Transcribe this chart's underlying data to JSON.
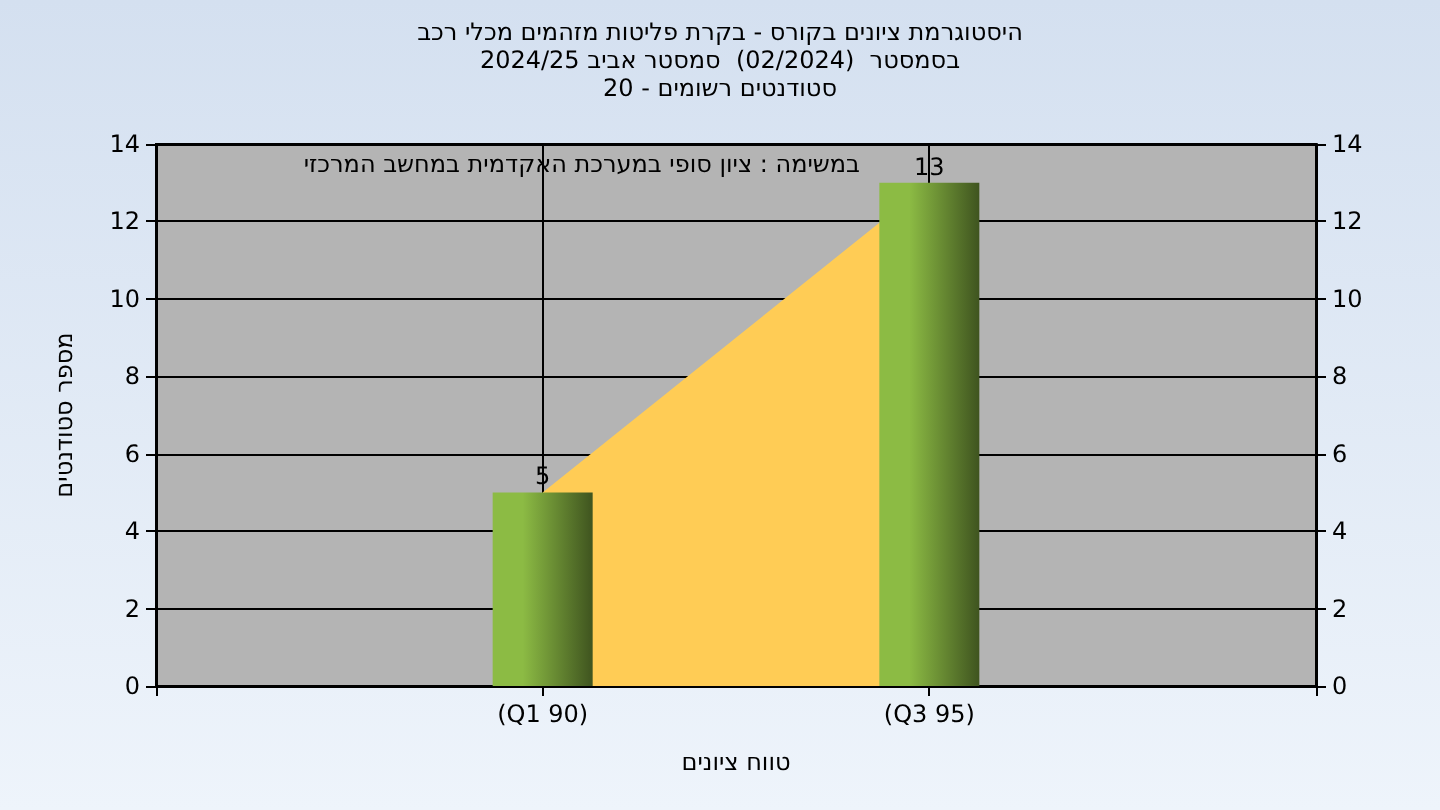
{
  "chart_data": {
    "type": "bar",
    "title": "היסטוגרמת ציונים בקורס - בקרת פליטות מזהמים מכלי רכב\nבסמסטר  (02/2024)  סמסטר אביב 2024/25\nסטודנטים רשומים - 20",
    "xlabel": "טווח ציונים",
    "ylabel": "מספר סטודנטים",
    "annotations": [
      "במשימה : ציון סופי במערכת האקדמית במחשב המרכזי"
    ],
    "categories": [
      null,
      "(Q1 90)",
      "(Q3 95)",
      null
    ],
    "series": [
      {
        "type": "area",
        "color": "#ffcc55",
        "values": [
          null,
          5,
          13,
          null
        ]
      },
      {
        "color": "#8cbb44",
        "values": [
          null,
          5,
          13,
          null
        ],
        "value_labels": [
          null,
          "5",
          "13",
          null
        ]
      }
    ],
    "ylim": [
      0,
      14
    ],
    "yticks": [
      0,
      2,
      4,
      6,
      8,
      10,
      12,
      14
    ],
    "y2lim": [
      0,
      14
    ],
    "y2ticks": [
      0,
      2,
      4,
      6,
      8,
      10,
      12,
      14
    ],
    "grid": true
  }
}
